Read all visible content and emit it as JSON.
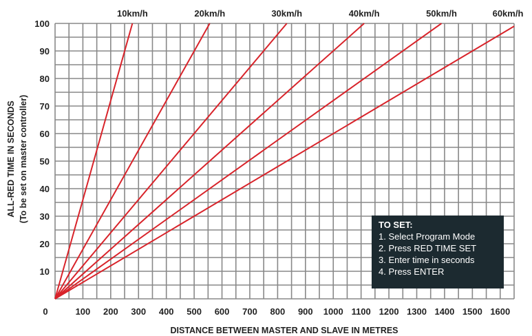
{
  "chart_data": {
    "type": "line",
    "xlabel": "DISTANCE BETWEEN MASTER AND SLAVE IN METRES",
    "ylabel": "ALL-RED TIME IN SECONDS",
    "ylabel_sub": "(To be set on master controller)",
    "xlim": [
      0,
      1650
    ],
    "ylim": [
      0,
      100
    ],
    "x_ticks": [
      0,
      100,
      200,
      300,
      400,
      500,
      600,
      700,
      800,
      900,
      1000,
      1100,
      1200,
      1300,
      1400,
      1500,
      1600
    ],
    "y_ticks": [
      10,
      20,
      30,
      40,
      50,
      60,
      70,
      80,
      90,
      100
    ],
    "grid": true,
    "series": [
      {
        "name": "10km/h",
        "x": [
          0,
          278
        ],
        "y": [
          0,
          100
        ]
      },
      {
        "name": "20km/h",
        "x": [
          0,
          556
        ],
        "y": [
          0,
          100
        ]
      },
      {
        "name": "30km/h",
        "x": [
          0,
          833
        ],
        "y": [
          0,
          100
        ]
      },
      {
        "name": "40km/h",
        "x": [
          0,
          1111
        ],
        "y": [
          0,
          100
        ]
      },
      {
        "name": "50km/h",
        "x": [
          0,
          1389
        ],
        "y": [
          0,
          100
        ]
      },
      {
        "name": "60km/h",
        "x": [
          0,
          1667
        ],
        "y": [
          0,
          100
        ]
      }
    ],
    "colors": {
      "line": "#d8232a",
      "grid": "#888888"
    }
  },
  "note": {
    "title": "TO SET:",
    "steps": [
      "1. Select Program Mode",
      "2. Press RED TIME SET",
      "3. Enter time in seconds",
      "4. Press ENTER"
    ]
  }
}
